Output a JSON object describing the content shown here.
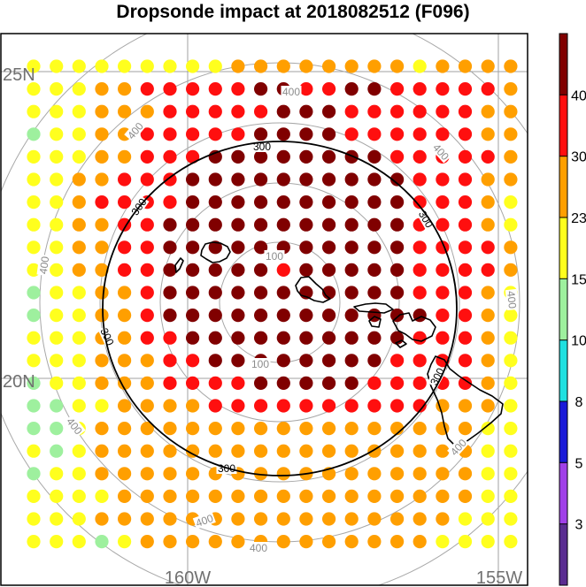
{
  "chart_data": {
    "type": "scatter",
    "title": "Dropsonde impact at 2018082512 (F096)",
    "grid": true,
    "lat_labels": [
      "25N",
      "20N"
    ],
    "lon_labels": [
      "160W",
      "155W"
    ],
    "range_ring_labels": [
      "100",
      "100",
      "300",
      "300",
      "300",
      "300",
      "300",
      "300",
      "400",
      "400",
      "400",
      "400",
      "400",
      "400",
      "400",
      "400",
      "400"
    ],
    "colorbar": {
      "position": "right",
      "levels": [
        "3",
        "5",
        "8",
        "10",
        "15",
        "23",
        "30",
        "40"
      ],
      "colors": [
        "#5a2d91",
        "#a040e8",
        "#1a1ad8",
        "#20e0e0",
        "#9ef09e",
        "#ffff1e",
        "#ff9f00",
        "#ff0f0f",
        "#800000"
      ]
    },
    "columns": 22,
    "rows": 22,
    "class_legend": "0:<3 1:3-5 2:5-8 3:8-10 4:10-15 5:15-23 6:23-30 7:30-40 8:>40",
    "grid_classes": [
      "5555555556666666656666",
      "5556677777887788777776",
      "5556667777788877777766",
      "4556677777888877777766",
      "5556677788888888777776",
      "5566777888888888877766",
      "5567777888888888877765",
      "5566778888888888877765",
      "5566778888888888877776",
      "5566778888878888877776",
      "4556678888888888877765",
      "4556678888888888887765",
      "5556677888888888877765",
      "5556667788888888777765",
      "4556667777888887777765",
      "4455666677777777776665",
      "4456666666666666666655",
      "5456666666666666666655",
      "4556666666666666666655",
      "5555666666666666666655",
      "5556666666666666666555",
      "5554566666666666665555"
    ]
  }
}
